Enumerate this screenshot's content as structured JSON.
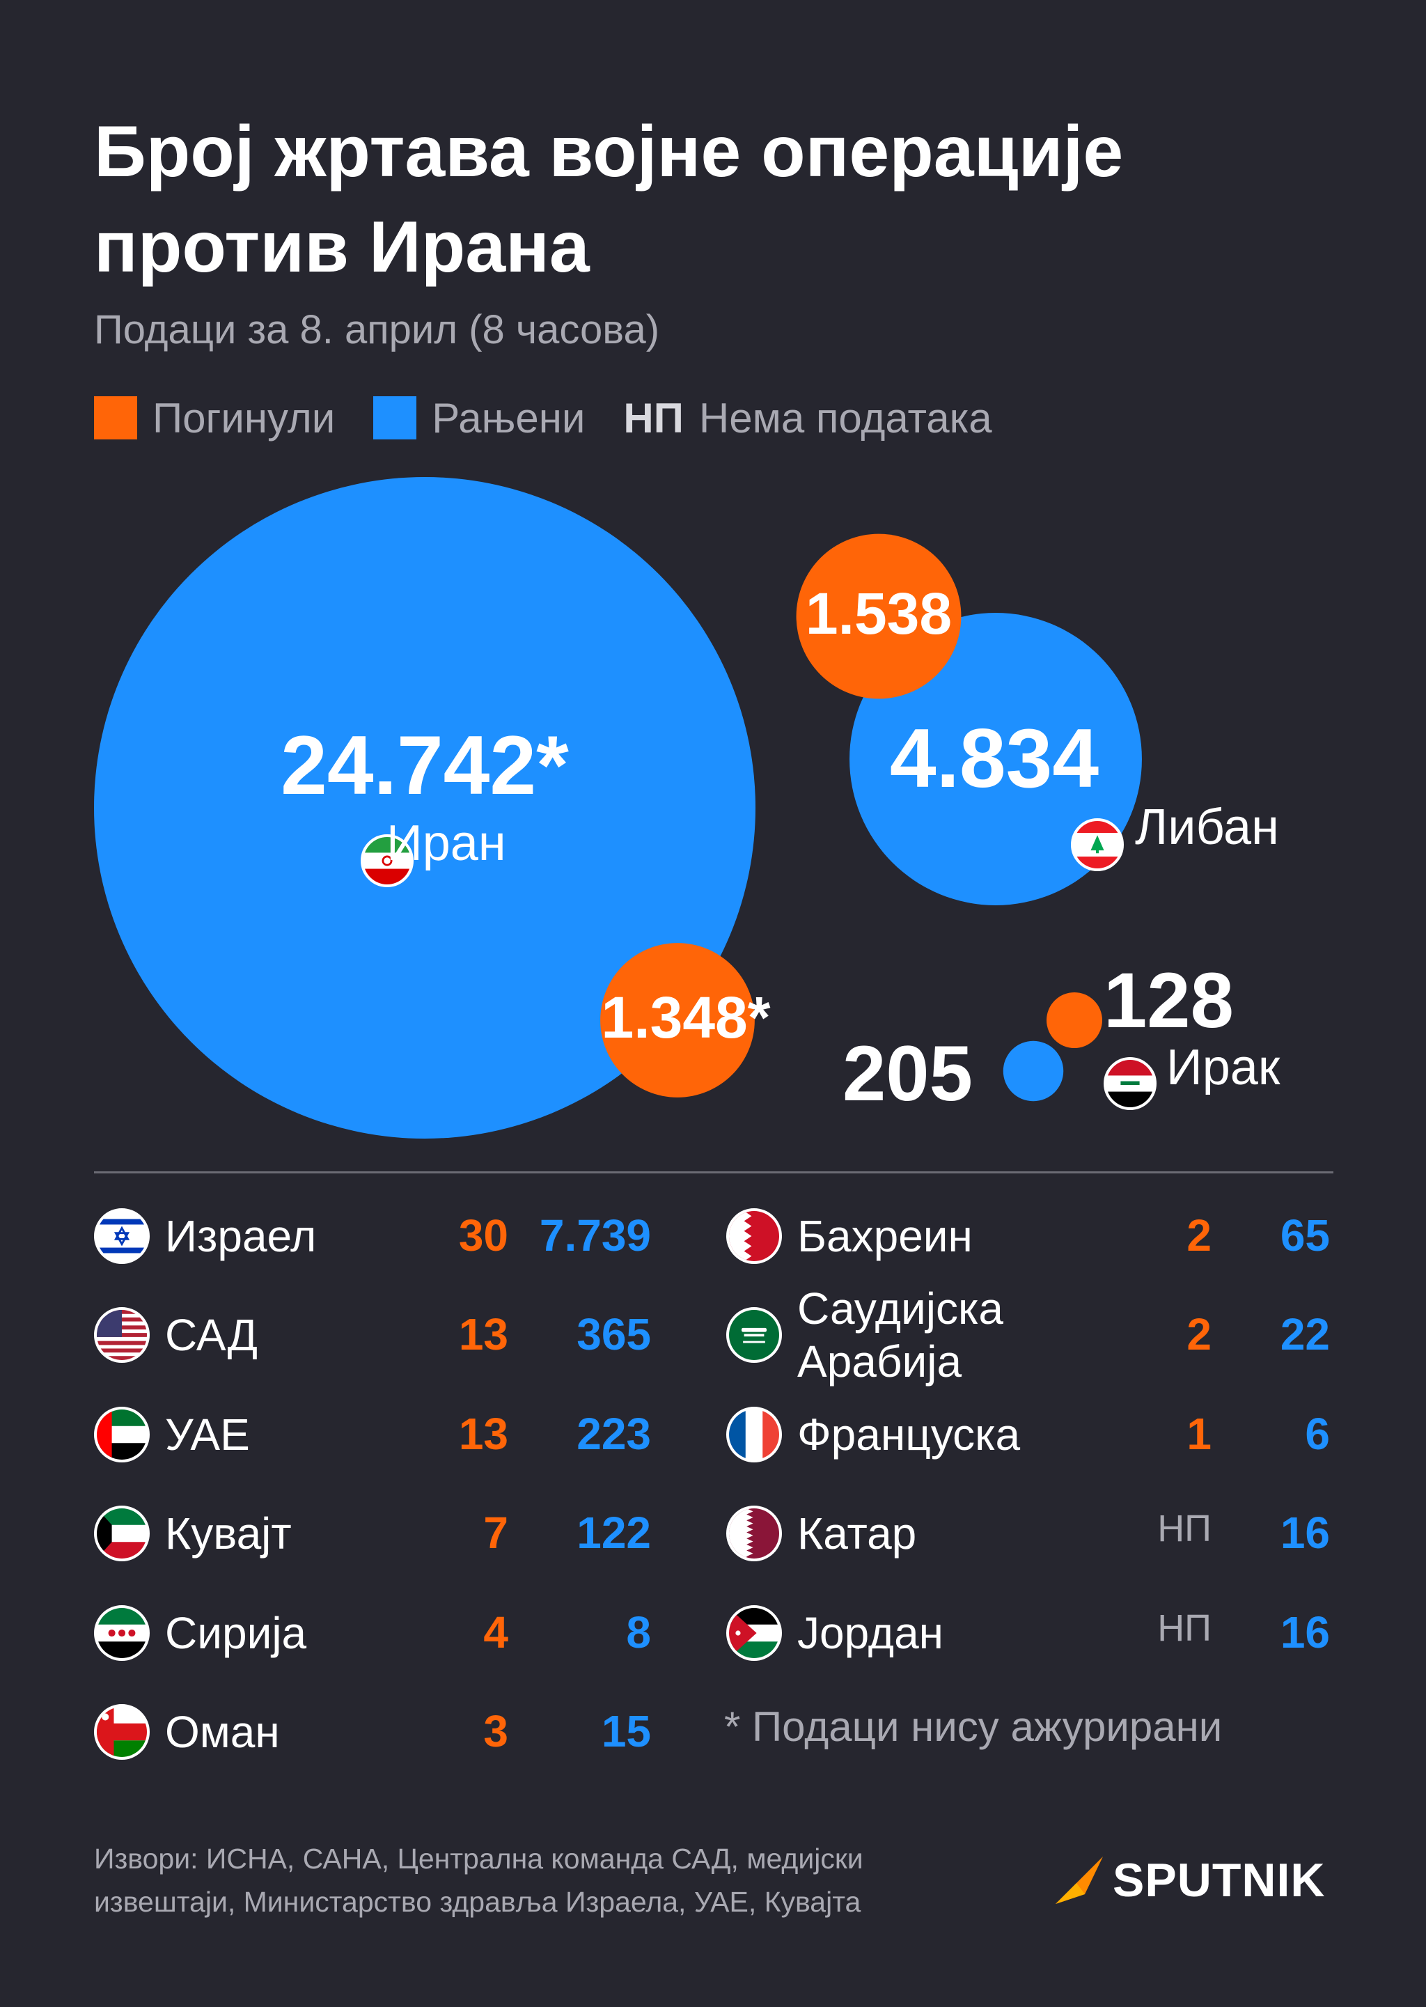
{
  "title_line1": "Број жртава војне операције",
  "title_line2": "против Ирана",
  "subtitle": "Подаци за 8. април (8 часова)",
  "legend": {
    "killed": "Погинули",
    "wounded": "Рањени",
    "np_key": "НП",
    "np_label": "Нема података",
    "killed_color": "#ff6508",
    "wounded_color": "#1e90ff"
  },
  "chart_data": {
    "type": "bubble",
    "series": [
      {
        "name": "Погинули",
        "color": "#ff6508"
      },
      {
        "name": "Рањени",
        "color": "#1e90ff"
      }
    ],
    "bubbles": [
      {
        "country": "Иран",
        "flag": "iran-flag-icon",
        "killed": 1348,
        "killed_label": "1.348*",
        "wounded": 24742,
        "wounded_label": "24.742*"
      },
      {
        "country": "Либан",
        "flag": "lebanon-flag-icon",
        "killed": 1538,
        "killed_label": "1.538",
        "wounded": 4834,
        "wounded_label": "4.834"
      },
      {
        "country": "Ирак",
        "flag": "iraq-flag-icon",
        "killed": 128,
        "killed_label": "128",
        "wounded": 205,
        "wounded_label": "205"
      }
    ]
  },
  "table": {
    "left": [
      {
        "country": "Израел",
        "flag": "israel-flag-icon",
        "killed": "30",
        "wounded": "7.739"
      },
      {
        "country": "САД",
        "flag": "usa-flag-icon",
        "killed": "13",
        "wounded": "365"
      },
      {
        "country": "УАЕ",
        "flag": "uae-flag-icon",
        "killed": "13",
        "wounded": "223"
      },
      {
        "country": "Кувајт",
        "flag": "kuwait-flag-icon",
        "killed": "7",
        "wounded": "122"
      },
      {
        "country": "Сирија",
        "flag": "syria-flag-icon",
        "killed": "4",
        "wounded": "8"
      },
      {
        "country": "Оман",
        "flag": "oman-flag-icon",
        "killed": "3",
        "wounded": "15"
      }
    ],
    "right": [
      {
        "country": "Бахреин",
        "flag": "bahrain-flag-icon",
        "killed": "2",
        "wounded": "65"
      },
      {
        "country_line1": "Саудијска",
        "country_line2": "Арабија",
        "flag": "saudi-flag-icon",
        "killed": "2",
        "wounded": "22"
      },
      {
        "country": "Француска",
        "flag": "france-flag-icon",
        "killed": "1",
        "wounded": "6"
      },
      {
        "country": "Катар",
        "flag": "qatar-flag-icon",
        "killed": "НП",
        "wounded": "16"
      },
      {
        "country": "Јордан",
        "flag": "jordan-flag-icon",
        "killed": "НП",
        "wounded": "16"
      }
    ]
  },
  "note": "* Подаци нису ажурирани",
  "sources_line1": "Извори: ИСНА, САНА, Централна команда САД, медијски",
  "sources_line2": "извештаји, Министарство здравља Израела, УАЕ, Кувајта",
  "logo_text": "SPUTNIK"
}
